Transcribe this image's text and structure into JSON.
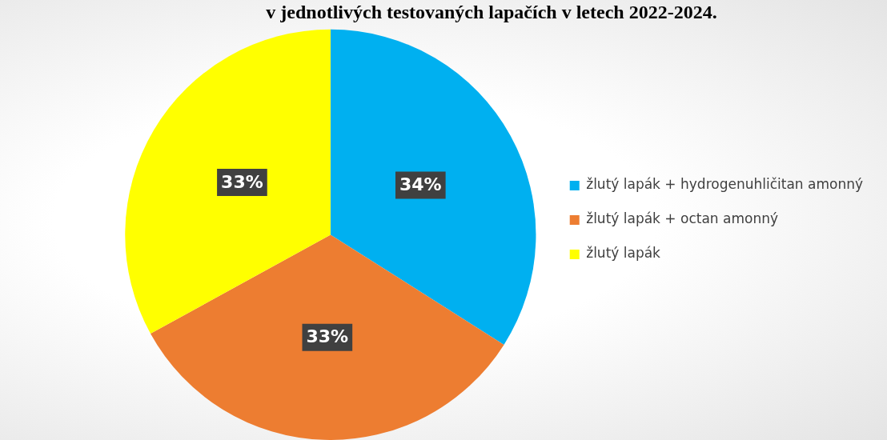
{
  "chart_data": {
    "type": "pie",
    "title": "v jednotlivých testovaných lapačích v letech 2022-2024.",
    "categories": [
      "žlutý lapák + hydrogenuhličitan amonný",
      "žlutý lapák + octan amonný",
      "žlutý lapák"
    ],
    "values": [
      34,
      33,
      33
    ],
    "colors": [
      "#00b0f0",
      "#ed7d31",
      "#ffff00"
    ],
    "value_labels": [
      "34%",
      "33%",
      "33%"
    ],
    "legend": "right"
  }
}
